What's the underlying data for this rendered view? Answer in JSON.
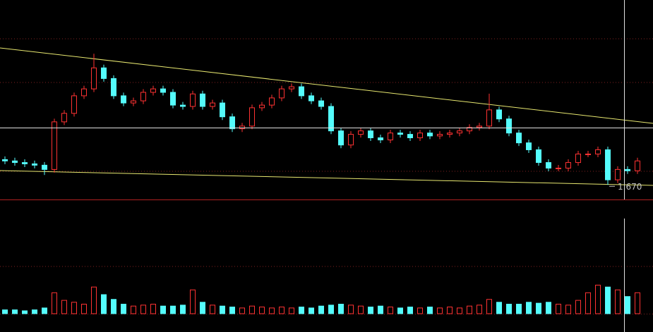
{
  "chart_data": {
    "type": "candlestick",
    "up_color": "#ff3232",
    "down_color": "#54fcfc",
    "ylim": [
      1.615,
      2.36
    ],
    "volume_ylim": [
      0,
      100
    ],
    "low_label": "1.670",
    "low_index": 61,
    "open": [
      1.765,
      1.76,
      1.754,
      1.749,
      1.744,
      1.728,
      1.907,
      1.939,
      2.005,
      2.031,
      2.11,
      2.07,
      2.005,
      1.978,
      1.986,
      2.018,
      2.031,
      2.018,
      1.97,
      1.965,
      2.012,
      1.965,
      1.978,
      1.926,
      1.881,
      1.891,
      1.96,
      1.97,
      1.997,
      2.031,
      2.039,
      2.005,
      1.986,
      1.965,
      1.873,
      1.82,
      1.86,
      1.873,
      1.847,
      1.839,
      1.865,
      1.86,
      1.847,
      1.865,
      1.854,
      1.86,
      1.865,
      1.873,
      1.886,
      1.891,
      1.952,
      1.918,
      1.865,
      1.828,
      1.802,
      1.754,
      1.733,
      1.733,
      1.754,
      1.786,
      1.786,
      1.802,
      1.689,
      1.728,
      1.723
    ],
    "high": [
      1.777,
      1.772,
      1.766,
      1.761,
      1.756,
      1.919,
      1.951,
      2.017,
      2.043,
      2.163,
      2.122,
      2.082,
      2.017,
      1.998,
      2.03,
      2.043,
      2.043,
      2.03,
      1.982,
      2.024,
      2.024,
      1.99,
      1.99,
      1.938,
      1.903,
      1.972,
      1.982,
      2.009,
      2.043,
      2.051,
      2.051,
      2.017,
      1.998,
      1.977,
      1.885,
      1.872,
      1.885,
      1.885,
      1.859,
      1.877,
      1.877,
      1.872,
      1.877,
      1.877,
      1.872,
      1.877,
      1.885,
      1.898,
      1.903,
      2.013,
      1.964,
      1.93,
      1.877,
      1.84,
      1.814,
      1.766,
      1.745,
      1.766,
      1.798,
      1.798,
      1.814,
      1.814,
      1.74,
      1.74,
      1.772
    ],
    "low": [
      1.748,
      1.742,
      1.737,
      1.732,
      1.707,
      1.716,
      1.895,
      1.927,
      1.993,
      2.019,
      2.058,
      1.993,
      1.966,
      1.966,
      1.974,
      2.006,
      2.006,
      1.958,
      1.953,
      1.953,
      1.953,
      1.953,
      1.914,
      1.869,
      1.869,
      1.879,
      1.948,
      1.958,
      1.985,
      2.019,
      1.993,
      1.974,
      1.953,
      1.861,
      1.808,
      1.808,
      1.848,
      1.835,
      1.827,
      1.827,
      1.848,
      1.835,
      1.835,
      1.842,
      1.842,
      1.848,
      1.853,
      1.861,
      1.874,
      1.879,
      1.906,
      1.853,
      1.816,
      1.79,
      1.742,
      1.721,
      1.721,
      1.721,
      1.742,
      1.774,
      1.774,
      1.67,
      1.677,
      1.711,
      1.711
    ],
    "close": [
      1.76,
      1.754,
      1.749,
      1.744,
      1.728,
      1.907,
      1.939,
      2.005,
      2.031,
      2.11,
      2.07,
      2.005,
      1.978,
      1.986,
      2.018,
      2.031,
      2.018,
      1.97,
      1.965,
      2.012,
      1.965,
      1.978,
      1.926,
      1.881,
      1.891,
      1.96,
      1.97,
      1.997,
      2.031,
      2.039,
      2.005,
      1.986,
      1.965,
      1.873,
      1.82,
      1.86,
      1.873,
      1.847,
      1.839,
      1.865,
      1.86,
      1.847,
      1.865,
      1.854,
      1.86,
      1.865,
      1.873,
      1.886,
      1.891,
      1.952,
      1.918,
      1.865,
      1.828,
      1.802,
      1.754,
      1.733,
      1.733,
      1.754,
      1.786,
      1.786,
      1.802,
      1.689,
      1.728,
      1.723,
      1.76
    ],
    "volume": [
      4,
      4,
      3,
      4,
      6,
      22,
      14,
      12,
      10,
      28,
      20,
      15,
      10,
      8,
      9,
      10,
      8,
      8,
      9,
      25,
      12,
      9,
      8,
      7,
      6,
      8,
      7,
      6,
      7,
      6,
      7,
      6,
      8,
      9,
      10,
      9,
      8,
      7,
      8,
      7,
      6,
      7,
      6,
      7,
      6,
      7,
      6,
      8,
      9,
      15,
      12,
      10,
      10,
      12,
      11,
      12,
      10,
      9,
      14,
      22,
      30,
      28,
      25,
      18,
      22
    ]
  }
}
